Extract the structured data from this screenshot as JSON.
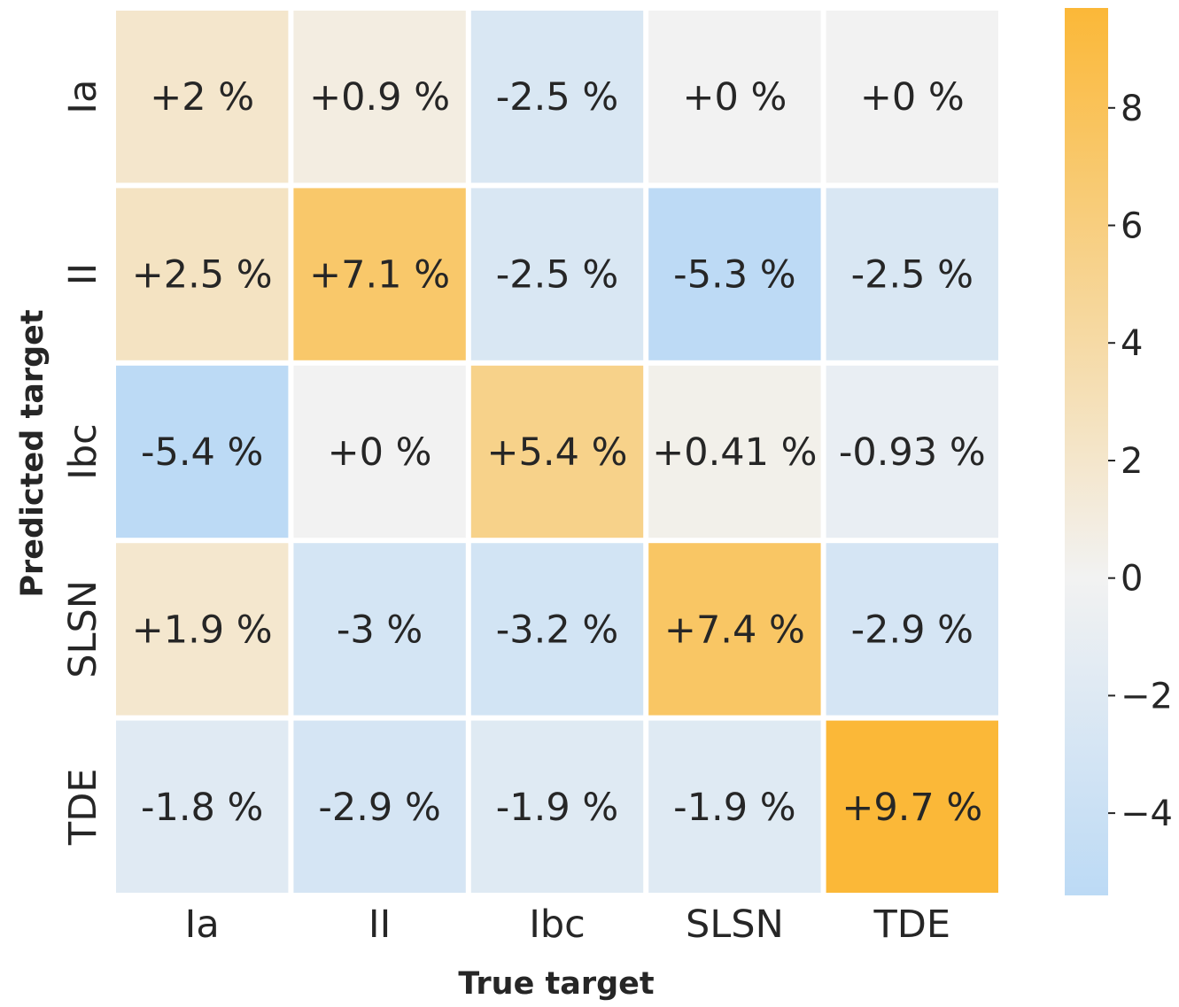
{
  "chart_data": {
    "type": "heatmap",
    "title": "",
    "xlabel": "True target",
    "ylabel": "Predicted target",
    "x_categories": [
      "Ia",
      "II",
      "Ibc",
      "SLSN",
      "TDE"
    ],
    "y_categories": [
      "Ia",
      "II",
      "Ibc",
      "SLSN",
      "TDE"
    ],
    "values": [
      [
        2.0,
        0.9,
        -2.5,
        0.0,
        0.0
      ],
      [
        2.5,
        7.1,
        -2.5,
        -5.3,
        -2.5
      ],
      [
        -5.4,
        0.0,
        5.4,
        0.41,
        -0.93
      ],
      [
        1.9,
        -3.0,
        -3.2,
        7.4,
        -2.9
      ],
      [
        -1.8,
        -2.9,
        -1.9,
        -1.9,
        9.7
      ]
    ],
    "cell_labels": [
      [
        "+2 %",
        "+0.9 %",
        "-2.5 %",
        "+0 %",
        "+0 %"
      ],
      [
        "+2.5 %",
        "+7.1 %",
        "-2.5 %",
        "-5.3 %",
        "-2.5 %"
      ],
      [
        "-5.4 %",
        "+0 %",
        "+5.4 %",
        "+0.41 %",
        "-0.93 %"
      ],
      [
        "+1.9 %",
        "-3 %",
        "-3.2 %",
        "+7.4 %",
        "-2.9 %"
      ],
      [
        "-1.8 %",
        "-2.9 %",
        "-1.9 %",
        "-1.9 %",
        "+9.7 %"
      ]
    ],
    "colorbar": {
      "vmin": -5.4,
      "vmax": 9.7,
      "center": 0,
      "ticks": [
        -4,
        -2,
        0,
        2,
        4,
        6,
        8
      ],
      "tick_labels": [
        "−4",
        "−2",
        "0",
        "2",
        "4",
        "6",
        "8"
      ],
      "color_low": "#bcdaf5",
      "color_mid": "#f2f2f2",
      "color_high": "#fbb838"
    },
    "grid": false,
    "legend": "colorbar-right"
  }
}
